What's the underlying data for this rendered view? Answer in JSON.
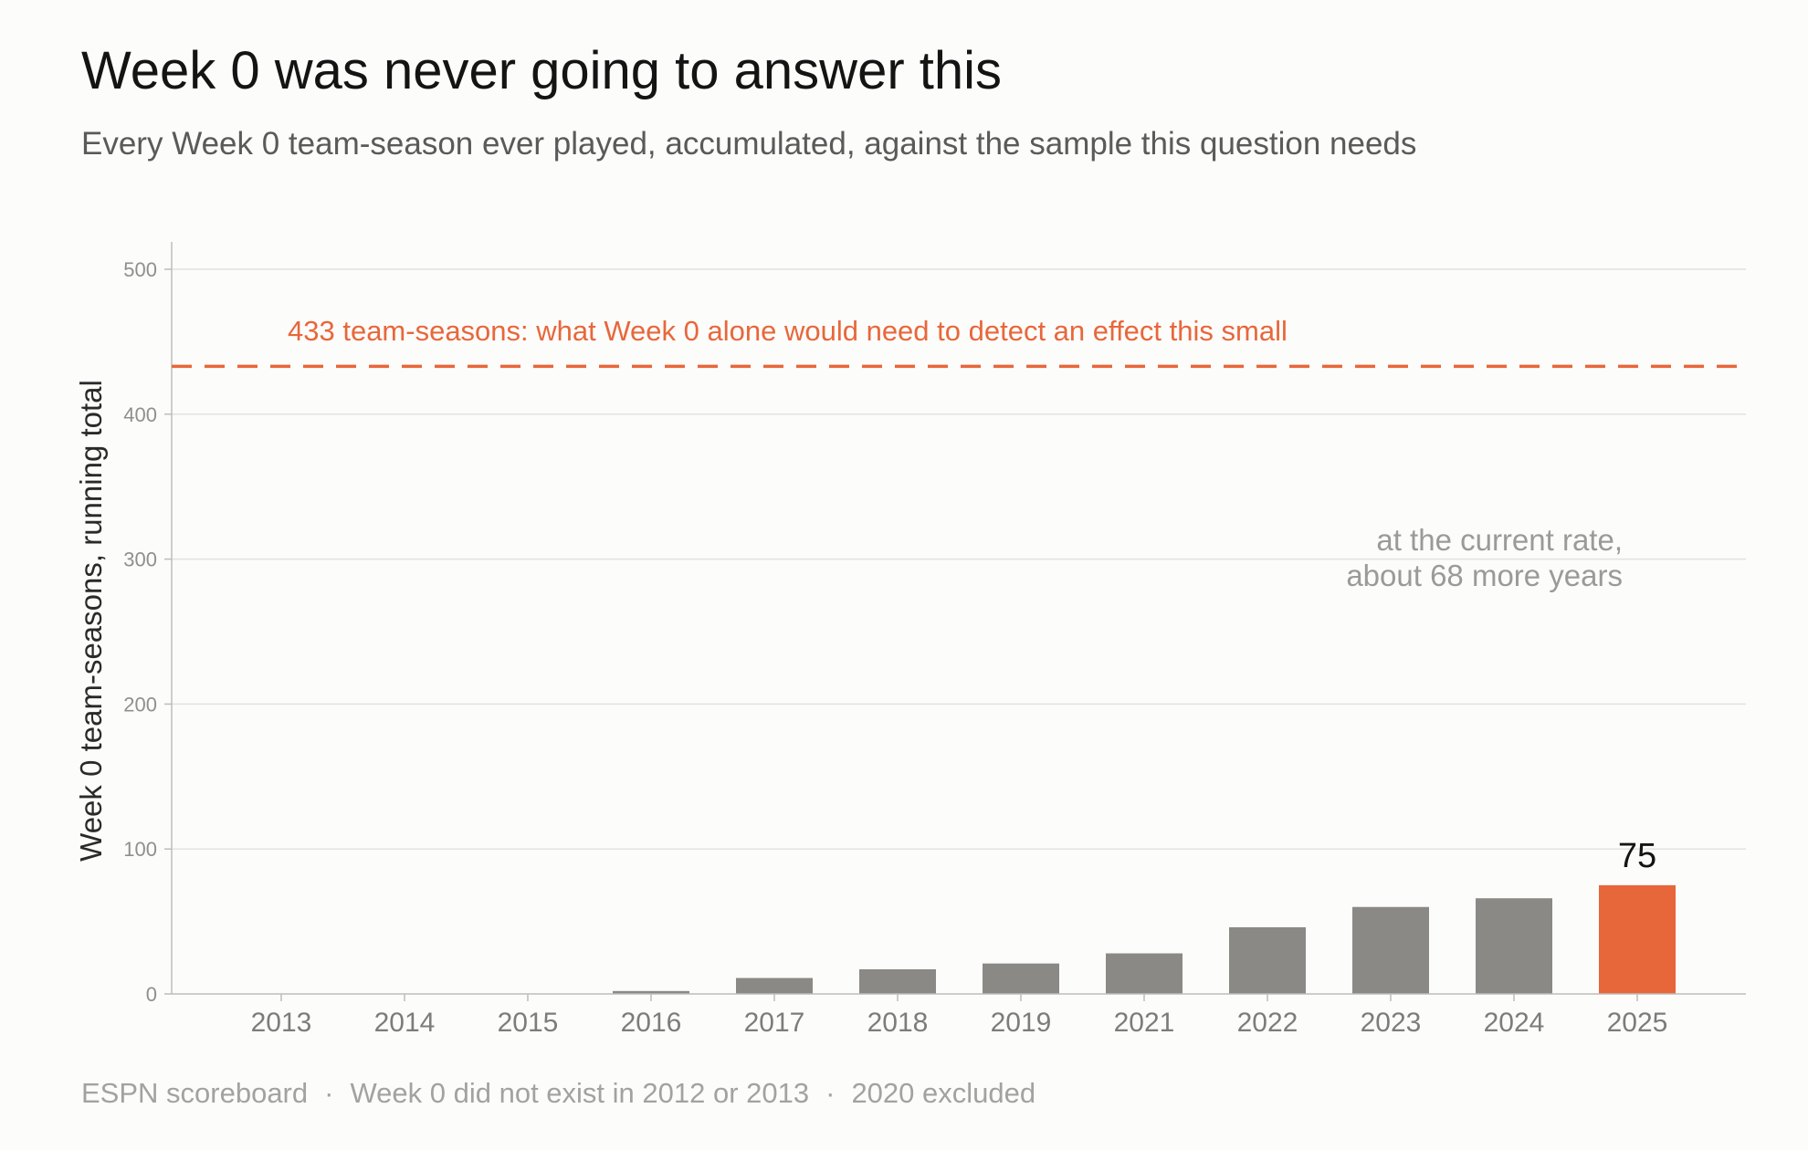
{
  "header": {
    "title": "Week 0 was never going to answer this",
    "subtitle": "Every Week 0 team-season ever played, accumulated, against the sample this question needs"
  },
  "footer": {
    "source": "ESPN scoreboard",
    "note1": "Week 0 did not exist in 2012 or 2013",
    "note2": "2020 excluded",
    "separator": "·"
  },
  "colors": {
    "bar": "#8a8985",
    "highlight": "#e8673a",
    "grid": "#e2e2e0",
    "axis": "#bdbdba",
    "tick_text": "#8f8f8b",
    "annotation": "#9a9a96",
    "label_text": "#2a2a2a"
  },
  "chart_data": {
    "type": "bar",
    "categories": [
      "2013",
      "2014",
      "2015",
      "2016",
      "2017",
      "2018",
      "2019",
      "2021",
      "2022",
      "2023",
      "2024",
      "2025"
    ],
    "values": [
      0,
      0,
      0,
      2,
      11,
      17,
      21,
      28,
      46,
      60,
      66,
      75
    ],
    "highlight_index": 11,
    "highlight_value_label": "75",
    "ylabel": "Week 0 team-seasons, running total",
    "xlabel": "",
    "ylim": [
      0,
      520
    ],
    "yticks": [
      0,
      100,
      200,
      300,
      400,
      500
    ],
    "grid": true,
    "reference_line": {
      "value": 433,
      "label": "433 team-seasons: what Week 0 alone would need to detect an effect this small"
    },
    "annotation": {
      "lines": [
        "at the current rate,",
        "about 68 more years"
      ]
    }
  }
}
